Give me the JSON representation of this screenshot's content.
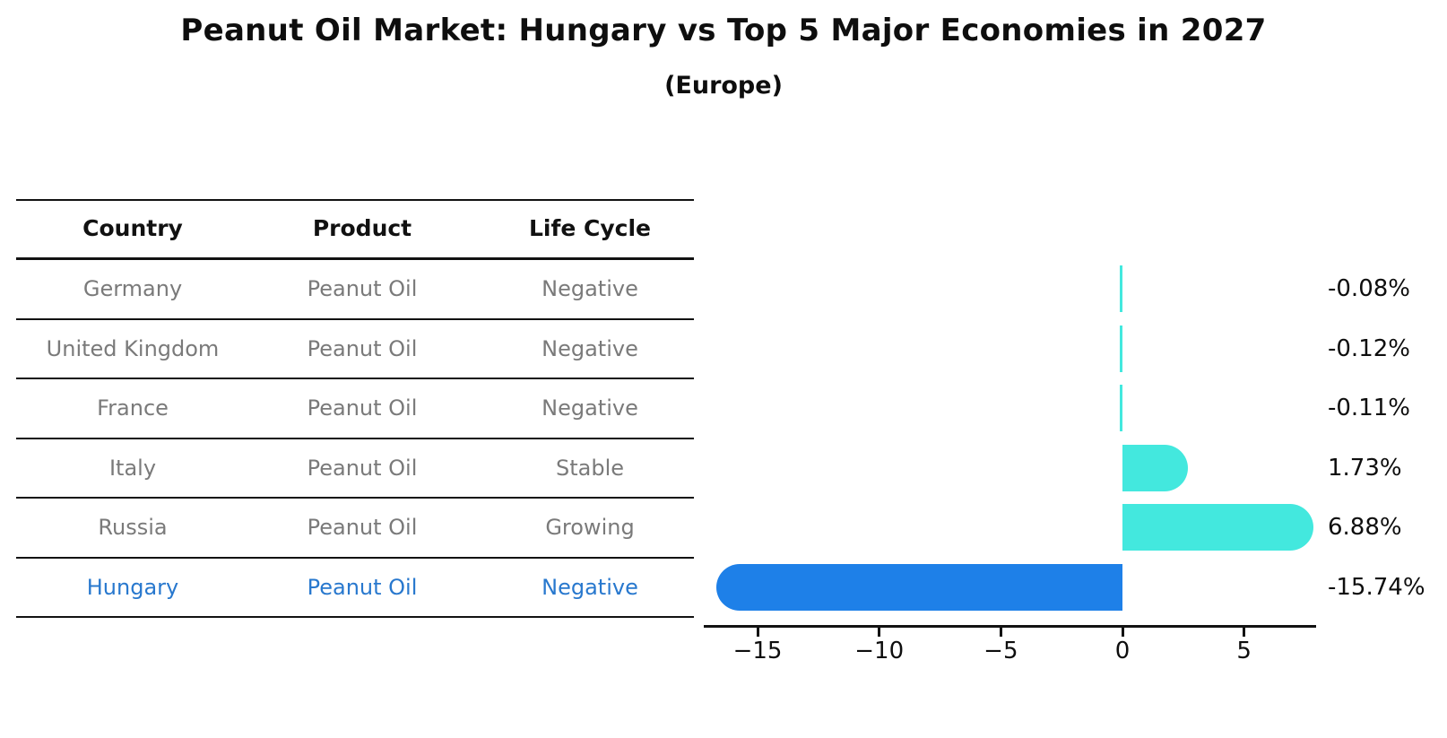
{
  "title": "Peanut Oil Market: Hungary vs Top 5 Major Economies in 2027",
  "subtitle": "(Europe)",
  "colors": {
    "bar_default": "#43e8de",
    "bar_highlight": "#1e80e8",
    "row_text": "#7a7a7a",
    "highlight_text": "#2878ce",
    "axis_and_titles": "#0e0e0e"
  },
  "table": {
    "headers": [
      "Country",
      "Product",
      "Life Cycle"
    ],
    "rows": [
      {
        "country": "Germany",
        "product": "Peanut Oil",
        "life_cycle": "Negative",
        "highlighted": false
      },
      {
        "country": "United Kingdom",
        "product": "Peanut Oil",
        "life_cycle": "Negative",
        "highlighted": false
      },
      {
        "country": "France",
        "product": "Peanut Oil",
        "life_cycle": "Negative",
        "highlighted": false
      },
      {
        "country": "Italy",
        "product": "Peanut Oil",
        "life_cycle": "Stable",
        "highlighted": false
      },
      {
        "country": "Russia",
        "product": "Peanut Oil",
        "life_cycle": "Growing",
        "highlighted": false
      },
      {
        "country": "Hungary",
        "product": "Peanut Oil",
        "life_cycle": "Negative",
        "highlighted": true
      }
    ]
  },
  "chart_data": {
    "type": "bar",
    "orientation": "horizontal",
    "title": "Peanut Oil Market: Hungary vs Top 5 Major Economies in 2027",
    "subtitle": "(Europe)",
    "categories": [
      "Germany",
      "United Kingdom",
      "France",
      "Italy",
      "Russia",
      "Hungary"
    ],
    "values": [
      -0.08,
      -0.12,
      -0.11,
      1.73,
      6.88,
      -15.74
    ],
    "value_labels": [
      "-0.08%",
      "-0.12%",
      "-0.11%",
      "1.73%",
      "6.88%",
      "-15.74%"
    ],
    "unit": "percent",
    "highlight_category": "Hungary",
    "highlight_index": 5,
    "highlight_bar_style": "dotted-edge",
    "x_tick_labels": [
      "−15",
      "−10",
      "−5",
      "0",
      "5"
    ],
    "x_tick_values": [
      -15,
      -10,
      -5,
      0,
      5
    ],
    "xlim": [
      -17.2,
      8.0
    ],
    "grid": false,
    "legend": false,
    "bar_color_default": "#43e8de",
    "bar_color_highlight": "#1e80e8"
  }
}
